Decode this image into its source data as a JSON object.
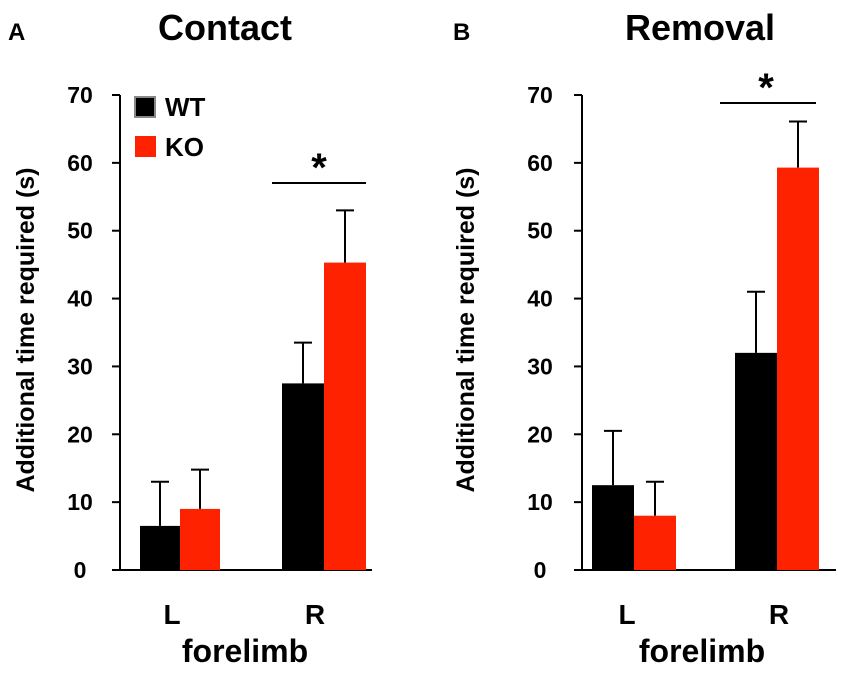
{
  "figure": {
    "colors": {
      "WT": "#000000",
      "KO": "#ff2200"
    },
    "legend": [
      {
        "name": "WT",
        "color": "#000000"
      },
      {
        "name": "KO",
        "color": "#ff2200"
      }
    ]
  },
  "chart_data": [
    {
      "type": "bar",
      "panel_letter": "A",
      "title": "Contact",
      "xlabel": "forelimb",
      "ylabel": "Additional time required (s)",
      "categories": [
        "L",
        "R"
      ],
      "ylim": [
        0,
        70
      ],
      "yticks": [
        0,
        10,
        20,
        30,
        40,
        50,
        60,
        70
      ],
      "series": [
        {
          "name": "WT",
          "values": [
            6.5,
            27.5
          ],
          "errors": [
            6.5,
            6
          ]
        },
        {
          "name": "KO",
          "values": [
            9,
            45.3
          ],
          "errors": [
            5.8,
            7.7
          ]
        }
      ],
      "significance": [
        {
          "category": "R",
          "label": "*"
        }
      ],
      "legend_position": "top-left"
    },
    {
      "type": "bar",
      "panel_letter": "B",
      "title": "Removal",
      "xlabel": "forelimb",
      "ylabel": "Additional time required (s)",
      "categories": [
        "L",
        "R"
      ],
      "ylim": [
        0,
        70
      ],
      "yticks": [
        0,
        10,
        20,
        30,
        40,
        50,
        60,
        70
      ],
      "series": [
        {
          "name": "WT",
          "values": [
            12.5,
            32
          ],
          "errors": [
            8,
            9
          ]
        },
        {
          "name": "KO",
          "values": [
            8,
            59.3
          ],
          "errors": [
            5,
            6.8
          ]
        }
      ],
      "significance": [
        {
          "category": "R",
          "label": "*"
        }
      ]
    }
  ]
}
